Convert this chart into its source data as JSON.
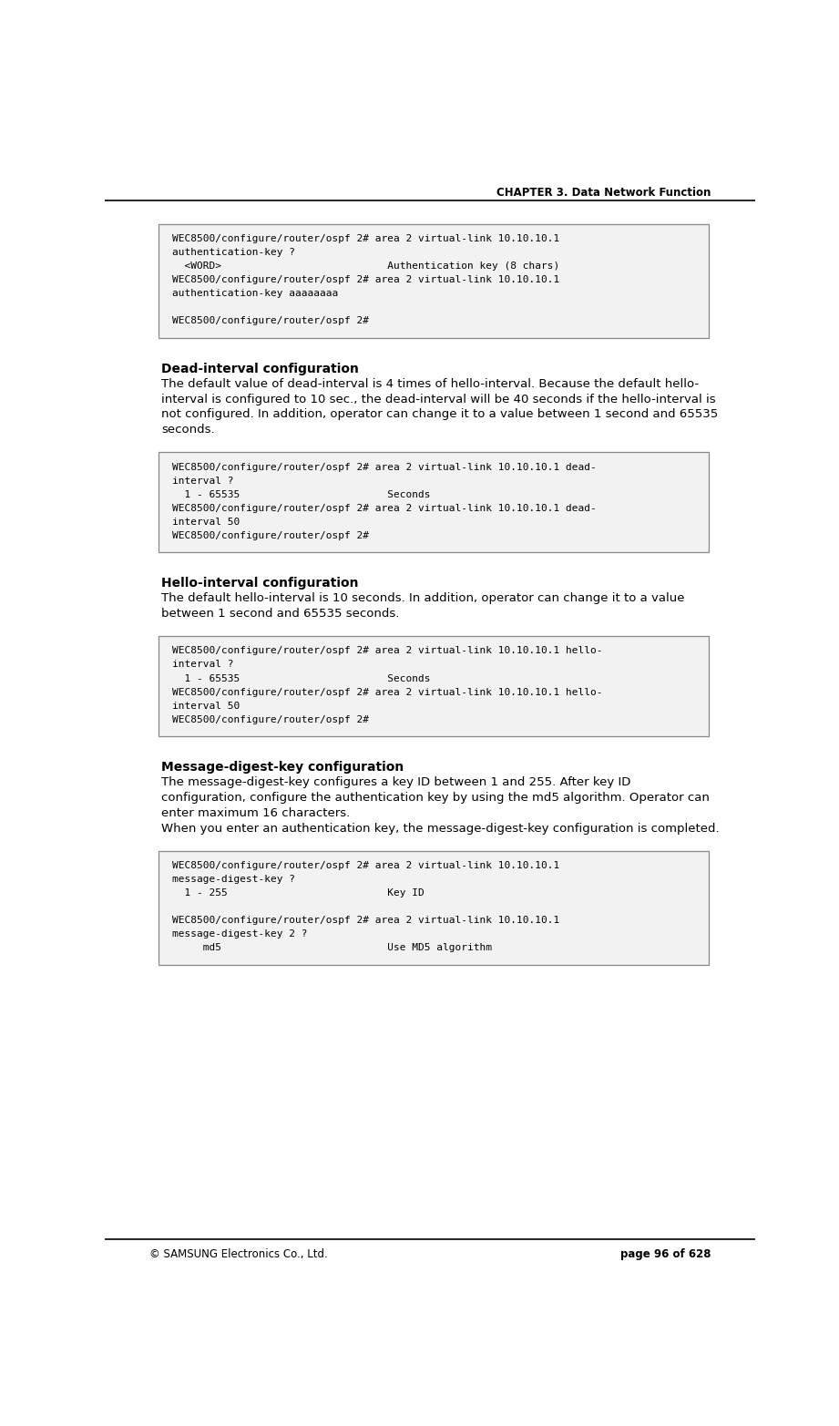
{
  "page_width": 9.21,
  "page_height": 15.65,
  "dpi": 100,
  "bg_color": "#ffffff",
  "header_text": "CHAPTER 3. Data Network Function",
  "footer_left": "© SAMSUNG Electronics Co., Ltd.",
  "footer_right": "page 96 of 628",
  "code_bg": "#f2f2f2",
  "code_border": "#888888",
  "code_font": "DejaVu Sans Mono",
  "body_font": "DejaVu Sans",
  "cb1_lines": [
    "WEC8500/configure/router/ospf 2# area 2 virtual-link 10.10.10.1",
    "authentication-key ?",
    "  <WORD>                           Authentication key (8 chars)",
    "WEC8500/configure/router/ospf 2# area 2 virtual-link 10.10.10.1",
    "authentication-key aaaaaaaa",
    "",
    "WEC8500/configure/router/ospf 2#"
  ],
  "heading1": "Dead-interval configuration",
  "body1_lines": [
    "The default value of dead-interval is 4 times of hello-interval. Because the default hello-",
    "interval is configured to 10 sec., the dead-interval will be 40 seconds if the hello-interval is",
    "not configured. In addition, operator can change it to a value between 1 second and 65535",
    "seconds."
  ],
  "cb2_lines": [
    "WEC8500/configure/router/ospf 2# area 2 virtual-link 10.10.10.1 dead-",
    "interval ?",
    "  1 - 65535                        Seconds",
    "WEC8500/configure/router/ospf 2# area 2 virtual-link 10.10.10.1 dead-",
    "interval 50",
    "WEC8500/configure/router/ospf 2#"
  ],
  "heading2": "Hello-interval configuration",
  "body2_lines": [
    "The default hello-interval is 10 seconds. In addition, operator can change it to a value",
    "between 1 second and 65535 seconds."
  ],
  "cb3_lines": [
    "WEC8500/configure/router/ospf 2# area 2 virtual-link 10.10.10.1 hello-",
    "interval ?",
    "  1 - 65535                        Seconds",
    "WEC8500/configure/router/ospf 2# area 2 virtual-link 10.10.10.1 hello-",
    "interval 50",
    "WEC8500/configure/router/ospf 2#"
  ],
  "heading3": "Message-digest-key configuration",
  "body3_lines": [
    "The message-digest-key configures a key ID between 1 and 255. After key ID",
    "configuration, configure the authentication key by using the md5 algorithm. Operator can",
    "enter maximum 16 characters.",
    "When you enter an authentication key, the message-digest-key configuration is completed."
  ],
  "cb4_lines": [
    "WEC8500/configure/router/ospf 2# area 2 virtual-link 10.10.10.1",
    "message-digest-key ?",
    "  1 - 255                          Key ID",
    "",
    "WEC8500/configure/router/ospf 2# area 2 virtual-link 10.10.10.1",
    "message-digest-key 2 ?",
    "     md5                           Use MD5 algorithm"
  ]
}
